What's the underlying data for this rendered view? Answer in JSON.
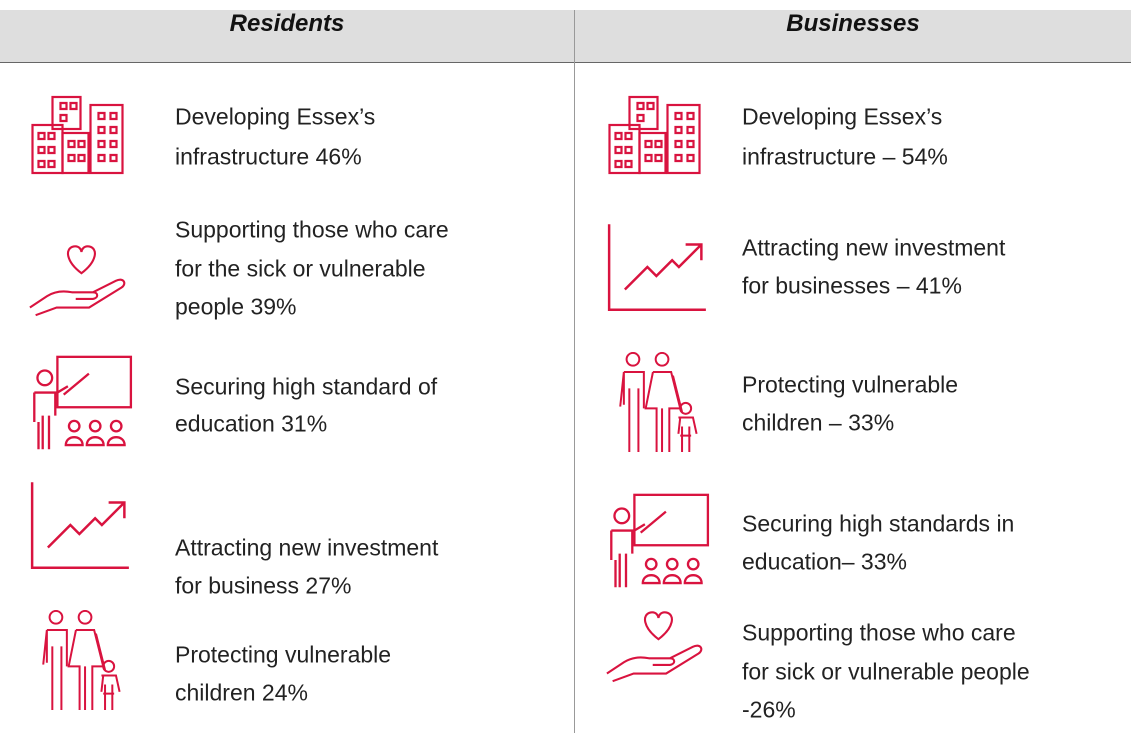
{
  "header": {
    "left": "Residents",
    "right": "Businesses"
  },
  "residents": [
    {
      "lines": [
        "Developing Essex’s",
        "infrastructure 46%"
      ]
    },
    {
      "lines": [
        "Supporting those who care",
        "for the sick or vulnerable",
        "people 39%"
      ]
    },
    {
      "lines": [
        "Securing high standard of",
        "education 31%"
      ]
    },
    {
      "lines": [
        "Attracting new investment",
        "for business 27%"
      ]
    },
    {
      "lines": [
        "Protecting vulnerable",
        "children 24%"
      ]
    }
  ],
  "businesses": [
    {
      "lines": [
        "Developing Essex’s",
        "infrastructure – 54%"
      ]
    },
    {
      "lines": [
        "Attracting new investment",
        "for businesses – 41%"
      ]
    },
    {
      "lines": [
        "Protecting vulnerable",
        "children – 33%"
      ]
    },
    {
      "lines": [
        "Securing high standards in",
        "education– 33%"
      ]
    },
    {
      "lines": [
        "Supporting those who care",
        "for sick or vulnerable people",
        "-26%"
      ]
    }
  ]
}
